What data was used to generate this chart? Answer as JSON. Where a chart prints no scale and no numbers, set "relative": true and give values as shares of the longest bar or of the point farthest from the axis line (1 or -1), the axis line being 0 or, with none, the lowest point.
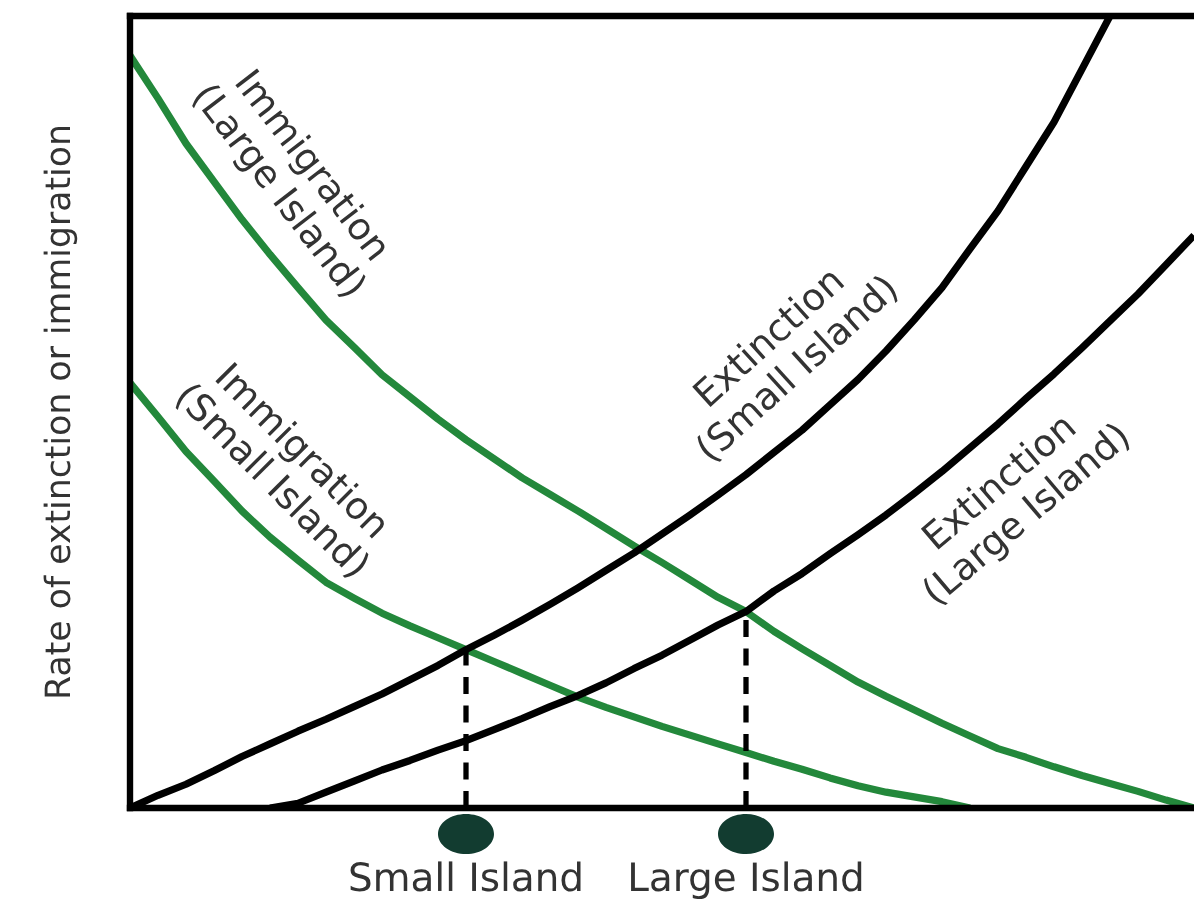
{
  "chart_data": {
    "type": "line",
    "relative": true,
    "ylabel": "Rate of extinction or immigration",
    "categories": [
      null,
      null,
      null,
      null,
      null,
      null,
      null,
      null,
      null,
      null,
      null,
      null,
      "Small Island",
      null,
      null,
      null,
      null,
      null,
      null,
      null,
      null,
      null,
      "Large Island",
      null,
      null,
      null,
      null,
      null,
      null,
      null,
      null,
      null,
      null,
      null,
      null,
      null,
      null,
      null,
      null
    ],
    "series": [
      {
        "name": "Immigration\n(Large Island)",
        "color": "#23883b",
        "values": [
          0.95,
          0.896,
          0.839,
          0.791,
          0.743,
          0.699,
          0.657,
          0.616,
          0.582,
          0.547,
          0.519,
          0.491,
          0.465,
          0.441,
          0.417,
          0.396,
          0.375,
          0.353,
          0.331,
          0.31,
          0.288,
          0.266,
          0.248,
          0.223,
          0.201,
          0.18,
          0.159,
          0.141,
          0.124,
          0.107,
          0.091,
          0.075,
          0.064,
          0.052,
          0.041,
          0.031,
          0.021,
          0.01,
          0
        ]
      },
      {
        "name": "Immigration\n(Small Island)",
        "color": "#23883b",
        "values": [
          0.537,
          0.494,
          0.45,
          0.413,
          0.375,
          0.342,
          0.313,
          0.285,
          0.265,
          0.246,
          0.23,
          0.215,
          0.2,
          0.185,
          0.17,
          0.155,
          0.14,
          0.127,
          0.115,
          0.103,
          0.092,
          0.081,
          0.07,
          0.059,
          0.049,
          0.038,
          0.028,
          0.02,
          0.014,
          0.008,
          0,
          null,
          null,
          null,
          null,
          null,
          null,
          null,
          null
        ]
      },
      {
        "name": "Extinction\n(Small Island)",
        "color": "#000000",
        "values": [
          0,
          0.016,
          0.03,
          0.047,
          0.065,
          0.081,
          0.097,
          0.112,
          0.128,
          0.144,
          0.162,
          0.18,
          0.2,
          0.218,
          0.237,
          0.257,
          0.278,
          0.3,
          0.322,
          0.346,
          0.37,
          0.395,
          0.421,
          0.449,
          0.477,
          0.509,
          0.541,
          0.577,
          0.616,
          0.657,
          0.706,
          0.754,
          0.81,
          0.866,
          0.933,
          1,
          null,
          null,
          null
        ]
      },
      {
        "name": "Extinction\n(Large Island)",
        "color": "#000000",
        "values": [
          null,
          null,
          null,
          null,
          null,
          0,
          0.006,
          0.02,
          0.034,
          0.048,
          0.06,
          0.073,
          0.085,
          0.099,
          0.113,
          0.128,
          0.142,
          0.158,
          0.176,
          0.193,
          0.212,
          0.231,
          0.248,
          0.274,
          0.296,
          0.321,
          0.345,
          0.37,
          0.397,
          0.425,
          0.455,
          0.485,
          0.517,
          0.548,
          0.581,
          0.615,
          0.649,
          0.686,
          0.723
        ]
      },
      {
        "color": "#000000",
        "line_style": "dashed",
        "x": [
          "Small Island",
          "Small Island"
        ],
        "values": [
          0,
          0.2
        ]
      },
      {
        "color": "#000000",
        "line_style": "dashed",
        "x": [
          "Large Island",
          "Large Island"
        ],
        "values": [
          0,
          0.248
        ]
      }
    ]
  }
}
